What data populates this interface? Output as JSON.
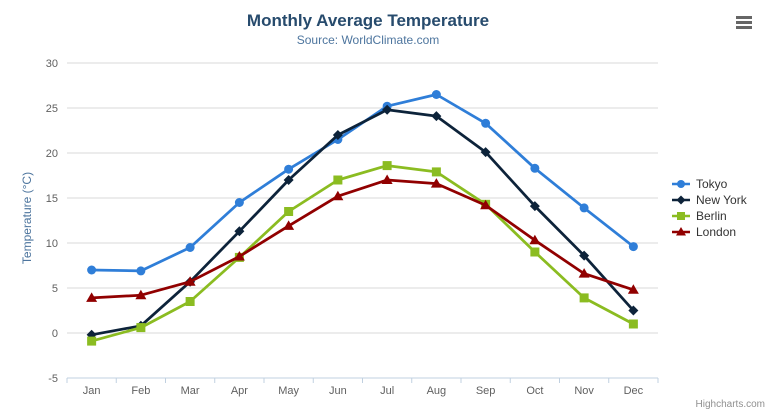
{
  "chart_data": {
    "type": "line",
    "title": "Monthly Average Temperature",
    "subtitle": "Source: WorldClimate.com",
    "xlabel": "",
    "ylabel": "Temperature (°C)",
    "categories": [
      "Jan",
      "Feb",
      "Mar",
      "Apr",
      "May",
      "Jun",
      "Jul",
      "Aug",
      "Sep",
      "Oct",
      "Nov",
      "Dec"
    ],
    "ylim": [
      -5,
      30
    ],
    "yticks": [
      -5,
      0,
      5,
      10,
      15,
      20,
      25,
      30
    ],
    "grid": true,
    "legend_position": "right",
    "series": [
      {
        "name": "Tokyo",
        "color": "#2f7ed8",
        "marker": "circle",
        "values": [
          7.0,
          6.9,
          9.5,
          14.5,
          18.2,
          21.5,
          25.2,
          26.5,
          23.3,
          18.3,
          13.9,
          9.6
        ]
      },
      {
        "name": "New York",
        "color": "#0d233a",
        "marker": "diamond",
        "values": [
          -0.2,
          0.8,
          5.7,
          11.3,
          17.0,
          22.0,
          24.8,
          24.1,
          20.1,
          14.1,
          8.6,
          2.5
        ]
      },
      {
        "name": "Berlin",
        "color": "#8bbc21",
        "marker": "square",
        "values": [
          -0.9,
          0.6,
          3.5,
          8.4,
          13.5,
          17.0,
          18.6,
          17.9,
          14.3,
          9.0,
          3.9,
          1.0
        ]
      },
      {
        "name": "London",
        "color": "#910000",
        "marker": "triangle",
        "values": [
          3.9,
          4.2,
          5.7,
          8.5,
          11.9,
          15.2,
          17.0,
          16.6,
          14.2,
          10.3,
          6.6,
          4.8
        ]
      }
    ]
  },
  "credits": {
    "text": "Highcharts.com"
  },
  "icons": {
    "export_menu": "hamburger-icon"
  },
  "styles": {
    "background": "#ffffff",
    "title_color": "#274b6d",
    "subtitle_color": "#4d759e",
    "axis_title_color": "#4d759e",
    "axis_label_color": "#606060",
    "legend_text_color": "#333333",
    "grid_color": "#d8d8d8",
    "axis_line_color": "#c0d0e0",
    "credits_color": "#909090",
    "menu_icon_color": "#666666"
  }
}
